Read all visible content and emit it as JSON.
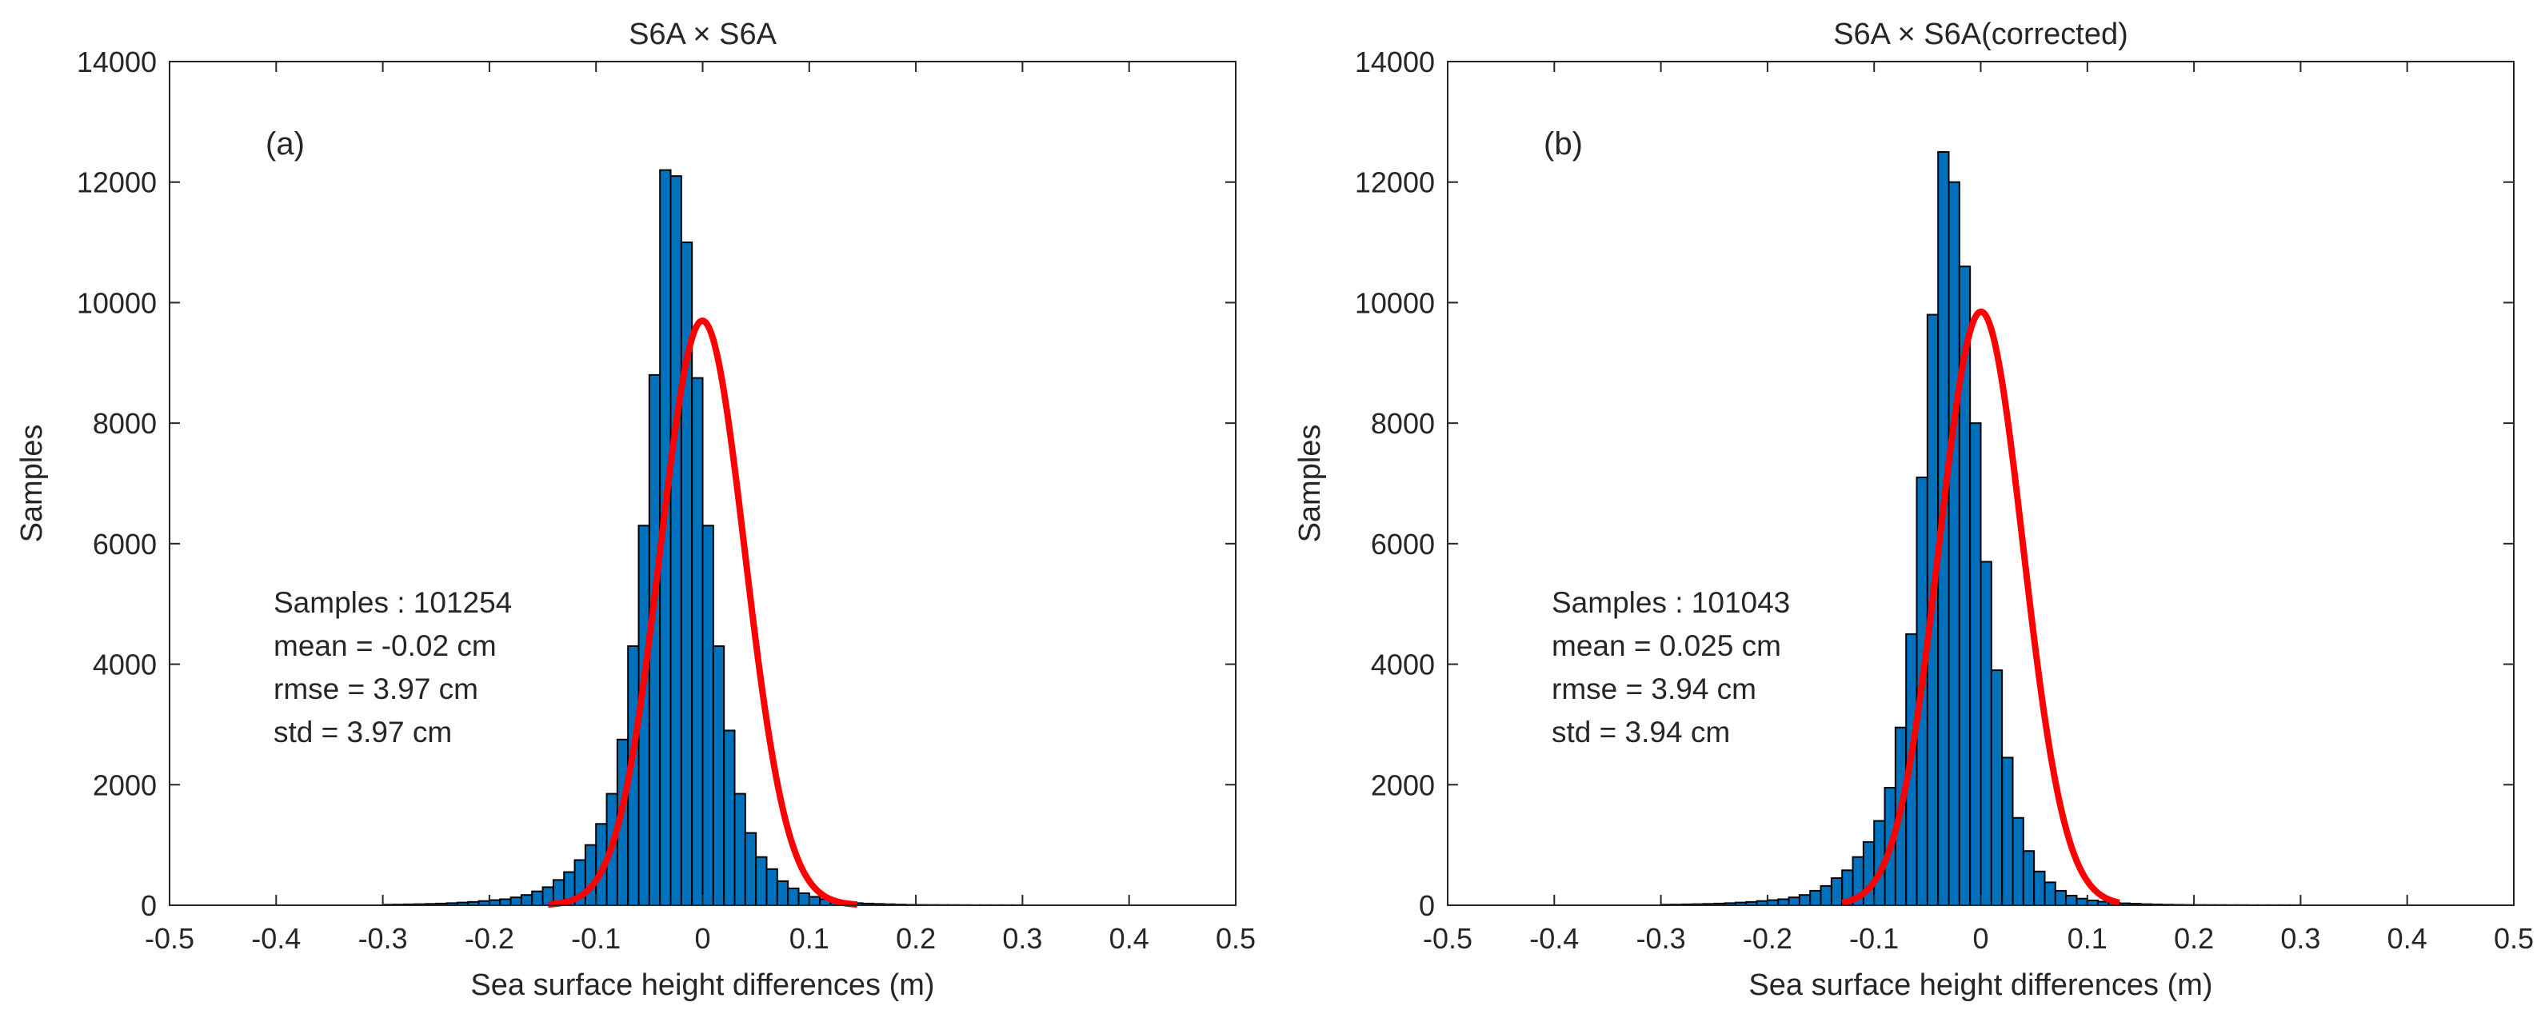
{
  "chart_data": [
    {
      "type": "bar",
      "title": "S6A × S6A",
      "panel_label": "(a)",
      "xlabel": "Sea surface height differences (m)",
      "ylabel": "Samples",
      "xlim": [
        -0.5,
        0.5
      ],
      "ylim": [
        0,
        14000
      ],
      "xticks": [
        "-0.5",
        "-0.4",
        "-0.3",
        "-0.2",
        "-0.1",
        "0",
        "0.1",
        "0.2",
        "0.3",
        "0.4",
        "0.5"
      ],
      "yticks": [
        "0",
        "2000",
        "4000",
        "6000",
        "8000",
        "10000",
        "12000",
        "14000"
      ],
      "bin_width": 0.01,
      "bin_start": -0.3,
      "bin_counts": [
        10,
        12,
        15,
        18,
        22,
        28,
        35,
        45,
        55,
        70,
        85,
        100,
        130,
        170,
        230,
        300,
        420,
        550,
        750,
        1000,
        1350,
        1850,
        2750,
        4300,
        6300,
        8800,
        12200,
        12100,
        11000,
        8750,
        6300,
        4300,
        2900,
        1850,
        1200,
        800,
        600,
        400,
        280,
        200,
        140,
        100,
        70,
        50,
        35,
        28,
        22,
        17,
        12,
        8,
        6,
        5,
        4,
        4,
        3,
        2,
        2,
        2,
        2,
        2
      ],
      "fit": {
        "type": "gaussian",
        "mean": -0.0002,
        "std": 0.0397,
        "peak": 9700,
        "range": [
          -0.145,
          0.145
        ]
      },
      "stats": [
        "Samples : 101254",
        "mean = -0.02 cm",
        "rmse = 3.97 cm",
        "std = 3.97 cm"
      ],
      "colors": {
        "bar": "#0072BD",
        "bar_edge": "#000000",
        "fit": "#FF0000"
      }
    },
    {
      "type": "bar",
      "title": "S6A × S6A(corrected)",
      "panel_label": "(b)",
      "xlabel": "Sea surface height differences (m)",
      "ylabel": "Samples",
      "xlim": [
        -0.5,
        0.5
      ],
      "ylim": [
        0,
        14000
      ],
      "xticks": [
        "-0.5",
        "-0.4",
        "-0.3",
        "-0.2",
        "-0.1",
        "0",
        "0.1",
        "0.2",
        "0.3",
        "0.4",
        "0.5"
      ],
      "yticks": [
        "0",
        "2000",
        "4000",
        "6000",
        "8000",
        "10000",
        "12000",
        "14000"
      ],
      "bin_width": 0.01,
      "bin_start": -0.3,
      "bin_counts": [
        10,
        12,
        15,
        18,
        22,
        28,
        35,
        45,
        55,
        70,
        85,
        100,
        130,
        170,
        240,
        320,
        450,
        580,
        800,
        1050,
        1400,
        1950,
        2950,
        4500,
        7100,
        9800,
        12500,
        12000,
        10600,
        8000,
        5700,
        3900,
        2450,
        1450,
        900,
        560,
        380,
        240,
        160,
        110,
        80,
        60,
        45,
        32,
        25,
        18,
        14,
        10,
        8,
        6,
        5,
        4,
        4,
        3,
        3,
        2,
        2,
        2,
        2,
        2
      ],
      "fit": {
        "type": "gaussian",
        "mean": 0.00025,
        "std": 0.0394,
        "peak": 9850,
        "range": [
          -0.13,
          0.13
        ]
      },
      "stats": [
        "Samples : 101043",
        "mean = 0.025 cm",
        "rmse = 3.94 cm",
        "std = 3.94 cm"
      ],
      "colors": {
        "bar": "#0072BD",
        "bar_edge": "#000000",
        "fit": "#FF0000"
      }
    }
  ]
}
